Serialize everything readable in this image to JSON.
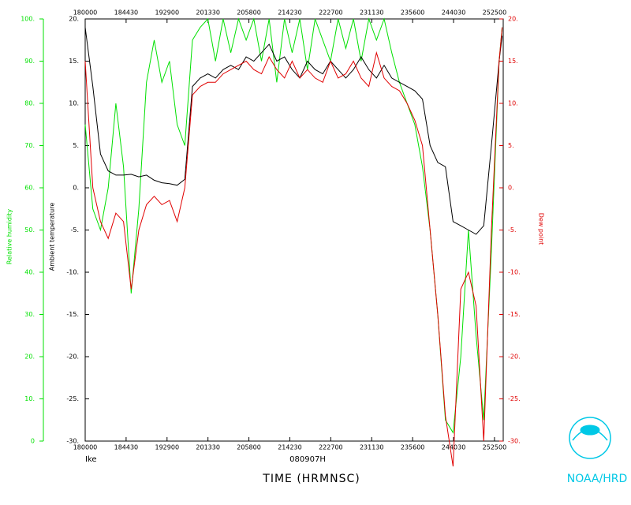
{
  "chart_data": {
    "type": "line",
    "storm": "Ike",
    "date_label": "080907H",
    "xlabel": "TIME (HRMNSC)",
    "credit": "NOAA/HRD",
    "ylabel": "Ambient temperature",
    "y2label": "Dew point",
    "y3label": "Relative humidity",
    "xlim": [
      0,
      27270
    ],
    "xticks": [
      {
        "value": 0,
        "label": "180000"
      },
      {
        "value": 2670,
        "label": "184430"
      },
      {
        "value": 5340,
        "label": "192900"
      },
      {
        "value": 8010,
        "label": "201330"
      },
      {
        "value": 10680,
        "label": "205800"
      },
      {
        "value": 13350,
        "label": "214230"
      },
      {
        "value": 16020,
        "label": "222700"
      },
      {
        "value": 18690,
        "label": "231130"
      },
      {
        "value": 21360,
        "label": "235600"
      },
      {
        "value": 24030,
        "label": "244030"
      },
      {
        "value": 26700,
        "label": "252500"
      }
    ],
    "ylim": [
      -30,
      20
    ],
    "yticks": [
      {
        "value": 20,
        "label": "20."
      },
      {
        "value": 15,
        "label": "15."
      },
      {
        "value": 10,
        "label": "10."
      },
      {
        "value": 5,
        "label": "5."
      },
      {
        "value": 0,
        "label": "0."
      },
      {
        "value": -5,
        "label": "-5."
      },
      {
        "value": -10,
        "label": "-10."
      },
      {
        "value": -15,
        "label": "-15."
      },
      {
        "value": -20,
        "label": "-20."
      },
      {
        "value": -25,
        "label": "-25."
      },
      {
        "value": -30,
        "label": "-30."
      }
    ],
    "y2lim": [
      -30,
      20
    ],
    "y2ticks": [
      {
        "value": 20,
        "label": "20."
      },
      {
        "value": 15,
        "label": "15."
      },
      {
        "value": 10,
        "label": "10."
      },
      {
        "value": 5,
        "label": "5."
      },
      {
        "value": 0,
        "label": "0."
      },
      {
        "value": -5,
        "label": "-5."
      },
      {
        "value": -10,
        "label": "-10."
      },
      {
        "value": -15,
        "label": "-15."
      },
      {
        "value": -20,
        "label": "-20."
      },
      {
        "value": -25,
        "label": "-25."
      },
      {
        "value": -30,
        "label": "-30."
      }
    ],
    "y3lim": [
      0,
      100
    ],
    "y3ticks": [
      {
        "value": 100,
        "label": "100."
      },
      {
        "value": 90,
        "label": "90."
      },
      {
        "value": 80,
        "label": "80."
      },
      {
        "value": 70,
        "label": "70."
      },
      {
        "value": 60,
        "label": "60."
      },
      {
        "value": 50,
        "label": "50."
      },
      {
        "value": 40,
        "label": "40."
      },
      {
        "value": 30,
        "label": "30."
      },
      {
        "value": 20,
        "label": "20."
      },
      {
        "value": 10,
        "label": "10."
      },
      0
    ],
    "x": [
      0,
      500,
      1000,
      1500,
      2000,
      2500,
      3000,
      3500,
      4000,
      4500,
      5000,
      5500,
      6000,
      6500,
      7000,
      7500,
      8000,
      8500,
      9000,
      9500,
      10000,
      10500,
      11000,
      11500,
      12000,
      12500,
      13000,
      13500,
      14000,
      14500,
      15000,
      15500,
      16000,
      16500,
      17000,
      17500,
      18000,
      18500,
      19000,
      19500,
      20000,
      20500,
      21000,
      21500,
      22000,
      22500,
      23000,
      23500,
      24000,
      24500,
      25000,
      25500,
      26000,
      26500,
      27000,
      27200
    ],
    "series": [
      {
        "color": "#00e000",
        "axis": "y3",
        "values": [
          75,
          55,
          50,
          60,
          80,
          65,
          35,
          55,
          85,
          95,
          85,
          90,
          75,
          70,
          95,
          98,
          100,
          90,
          100,
          92,
          100,
          95,
          100,
          90,
          100,
          85,
          100,
          92,
          100,
          88,
          100,
          95,
          90,
          100,
          93,
          100,
          90,
          100,
          95,
          100,
          92,
          85,
          80,
          75,
          65,
          50,
          30,
          5,
          2,
          20,
          50,
          25,
          5,
          45,
          90,
          98
        ]
      },
      {
        "color": "#000000",
        "axis": "y",
        "values": [
          19,
          12,
          4,
          2,
          1.5,
          1.5,
          1.6,
          1.3,
          1.5,
          0.9,
          0.6,
          0.5,
          0.3,
          1,
          12,
          13,
          13.5,
          13,
          14,
          14.5,
          14,
          15.5,
          15,
          16,
          17,
          15,
          15.5,
          14,
          13,
          15,
          14,
          13.5,
          15,
          14,
          13,
          14,
          15.5,
          14,
          13,
          14.5,
          13,
          12.5,
          12,
          11.5,
          10.5,
          5,
          3,
          2.5,
          -4,
          -4.5,
          -5,
          -5.5,
          -4.5,
          5,
          15,
          18
        ]
      },
      {
        "color": "#e00000",
        "axis": "y2",
        "values": [
          15,
          0,
          -4,
          -6,
          -3,
          -4,
          -12,
          -5,
          -2,
          -1,
          -2,
          -1.5,
          -4,
          0,
          11,
          12,
          12.5,
          12.5,
          13.5,
          14,
          14.5,
          15,
          14,
          13.5,
          15.5,
          14,
          13,
          15,
          13,
          14,
          13,
          12.5,
          15,
          13,
          13.5,
          15,
          13,
          12,
          16,
          13,
          12,
          11.5,
          10,
          8,
          5,
          -5,
          -15,
          -27,
          -33,
          -12,
          -10,
          -14,
          -30,
          -5,
          15,
          19
        ]
      }
    ]
  }
}
